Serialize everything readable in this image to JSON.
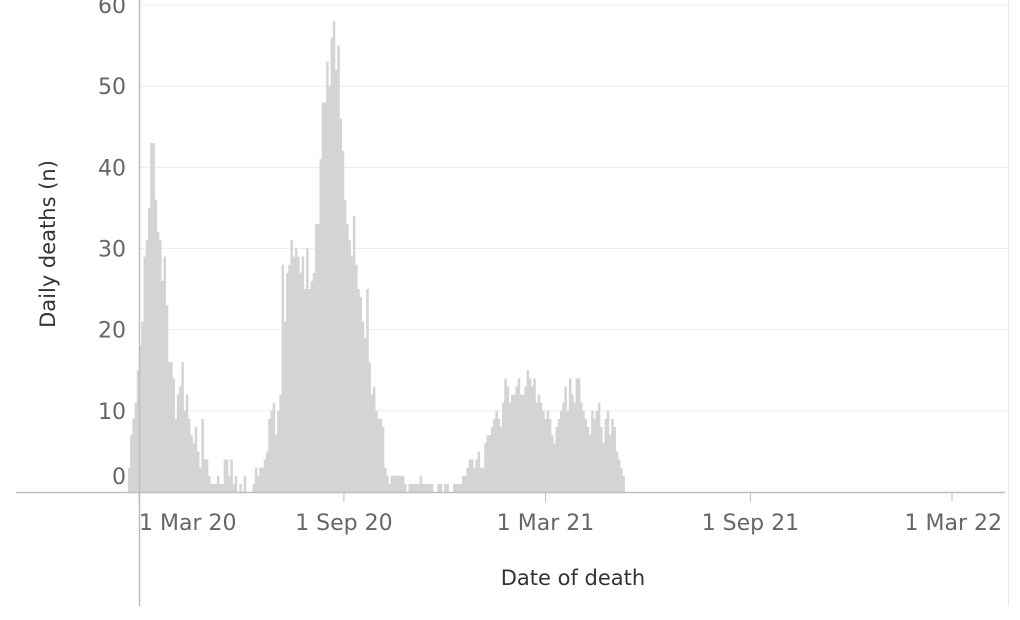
{
  "chart_data": {
    "type": "bar",
    "xlabel": "Date of death",
    "ylabel": "Daily deaths (n)",
    "ylim": [
      0,
      60
    ],
    "y_ticks": [
      "0",
      "10",
      "20",
      "30",
      "40",
      "50",
      "60"
    ],
    "x_ticks": [
      "1 Mar 20",
      "1 Sep 20",
      "1 Mar 21",
      "1 Sep 21",
      "1 Mar 22"
    ],
    "bar_color": "#d4d4d4",
    "grid": true,
    "gridline_color": "#ececec",
    "x_start_date": "2020-02-20",
    "x_bin_days": 2,
    "values": [
      3,
      7,
      9,
      11,
      15,
      18,
      21,
      29,
      31,
      35,
      43,
      43,
      36,
      32,
      31,
      26,
      29,
      23,
      16,
      16,
      14,
      9,
      12,
      13,
      16,
      10,
      12,
      9,
      7,
      6,
      8,
      5,
      3,
      9,
      4,
      4,
      2,
      1,
      1,
      1,
      2,
      1,
      1,
      4,
      4,
      2,
      4,
      1,
      2,
      0,
      1,
      0,
      2,
      0,
      0,
      0,
      1,
      3,
      2,
      3,
      3,
      4,
      5,
      9,
      10,
      11,
      7,
      10,
      12,
      28,
      21,
      27,
      28,
      31,
      29,
      30,
      29,
      27,
      29,
      25,
      30,
      25,
      26,
      27,
      33,
      33,
      41,
      48,
      48,
      53,
      50,
      56,
      58,
      52,
      55,
      46,
      42,
      36,
      33,
      31,
      29,
      34,
      28,
      25,
      24,
      21,
      19,
      25,
      16,
      12,
      13,
      10,
      9,
      9,
      8,
      3,
      2,
      1,
      2,
      2,
      2,
      2,
      2,
      2,
      1,
      0,
      1,
      1,
      1,
      1,
      1,
      2,
      1,
      1,
      1,
      1,
      1,
      0,
      0,
      1,
      1,
      0,
      1,
      1,
      0,
      0,
      1,
      1,
      1,
      1,
      2,
      2,
      3,
      4,
      4,
      3,
      4,
      5,
      3,
      3,
      6,
      7,
      7,
      8,
      9,
      10,
      9,
      8,
      11,
      14,
      13,
      11,
      12,
      12,
      13,
      14,
      12,
      12,
      13,
      15,
      14,
      13,
      14,
      11,
      12,
      11,
      10,
      9,
      10,
      9,
      7,
      6,
      8,
      9,
      10,
      11,
      13,
      10,
      14,
      12,
      11,
      14,
      14,
      11,
      10,
      9,
      8,
      7,
      10,
      9,
      10,
      11,
      8,
      6,
      9,
      10,
      7,
      9,
      8,
      5,
      4,
      3,
      2
    ]
  }
}
